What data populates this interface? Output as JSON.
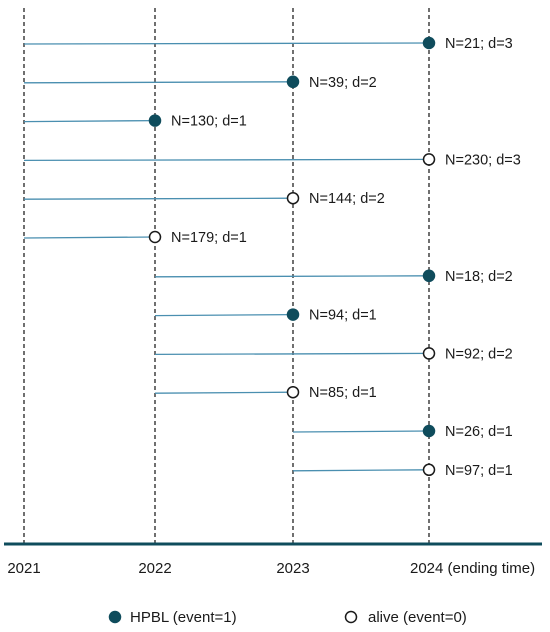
{
  "colors": {
    "line": "#4a8fb0",
    "axis": "#0f4c5c",
    "event_fill": "#0f4c5c",
    "grid": "#222222"
  },
  "axis": {
    "ticks": [
      "2021",
      "2022",
      "2023",
      "2024 (ending time)"
    ]
  },
  "rows": [
    {
      "start": 2021,
      "end": 2024,
      "event": 1,
      "label": "N=21; d=3"
    },
    {
      "start": 2021,
      "end": 2023,
      "event": 1,
      "label": "N=39; d=2"
    },
    {
      "start": 2021,
      "end": 2022,
      "event": 1,
      "label": "N=130; d=1"
    },
    {
      "start": 2021,
      "end": 2024,
      "event": 0,
      "label": "N=230; d=3"
    },
    {
      "start": 2021,
      "end": 2023,
      "event": 0,
      "label": "N=144; d=2"
    },
    {
      "start": 2021,
      "end": 2022,
      "event": 0,
      "label": "N=179; d=1"
    },
    {
      "start": 2022,
      "end": 2024,
      "event": 1,
      "label": "N=18; d=2"
    },
    {
      "start": 2022,
      "end": 2023,
      "event": 1,
      "label": "N=94; d=1"
    },
    {
      "start": 2022,
      "end": 2024,
      "event": 0,
      "label": "N=92; d=2"
    },
    {
      "start": 2022,
      "end": 2023,
      "event": 0,
      "label": "N=85; d=1"
    },
    {
      "start": 2023,
      "end": 2024,
      "event": 1,
      "label": "N=26; d=1"
    },
    {
      "start": 2023,
      "end": 2024,
      "event": 0,
      "label": "N=97; d=1"
    }
  ],
  "legend": {
    "event_label": "HPBL (event=1)",
    "alive_label": "alive (event=0)"
  }
}
